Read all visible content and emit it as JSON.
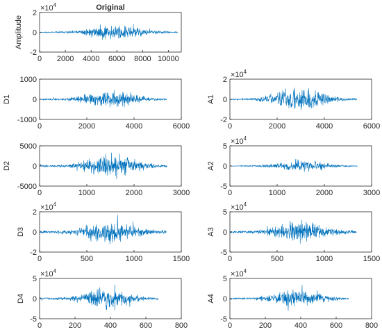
{
  "chart_data": [
    {
      "id": "original",
      "type": "line",
      "title": "Original",
      "ylabel": "Amplitude",
      "exponent_label": "×10",
      "exponent_power": "4",
      "xlim": [
        0,
        11000
      ],
      "ylim": [
        -2,
        2
      ],
      "xticks": [
        0,
        2000,
        4000,
        6000,
        8000,
        10000
      ],
      "xticklabels": [
        "0",
        "2000",
        "4000",
        "6000",
        "8000",
        "10000"
      ],
      "yticks": [
        -2,
        0,
        2
      ],
      "yticklabels": [
        "-2",
        "0",
        "2"
      ],
      "signal": {
        "length": 10750,
        "peak": 1.05,
        "center": 0.55,
        "width": 0.23,
        "floor": 0.06,
        "seed": 11
      },
      "series_color": "#0072BD"
    },
    {
      "id": "d1",
      "type": "line",
      "ylabel": "D1",
      "xlim": [
        0,
        6000
      ],
      "ylim": [
        -1000,
        1000
      ],
      "xticks": [
        0,
        2000,
        4000,
        6000
      ],
      "xticklabels": [
        "0",
        "2000",
        "4000",
        "6000"
      ],
      "yticks": [
        -1000,
        0,
        1000
      ],
      "yticklabels": [
        "-1000",
        "0",
        "1000"
      ],
      "signal": {
        "length": 5380,
        "peak": 560,
        "center": 0.56,
        "width": 0.24,
        "floor": 0.08,
        "seed": 23
      },
      "series_color": "#0072BD"
    },
    {
      "id": "a1",
      "type": "line",
      "ylabel": "A1",
      "exponent_label": "×10",
      "exponent_power": "4",
      "xlim": [
        0,
        6000
      ],
      "ylim": [
        -2,
        2
      ],
      "xticks": [
        0,
        2000,
        4000,
        6000
      ],
      "xticklabels": [
        "0",
        "2000",
        "4000",
        "6000"
      ],
      "yticks": [
        -2,
        0,
        2
      ],
      "yticklabels": [
        "-2",
        "0",
        "2"
      ],
      "signal": {
        "length": 5380,
        "peak": 1.75,
        "center": 0.55,
        "width": 0.22,
        "floor": 0.05,
        "seed": 37
      },
      "series_color": "#0072BD"
    },
    {
      "id": "d2",
      "type": "line",
      "ylabel": "D2",
      "xlim": [
        0,
        3000
      ],
      "ylim": [
        -5000,
        5000
      ],
      "xticks": [
        0,
        1000,
        2000,
        3000
      ],
      "xticklabels": [
        "0",
        "1000",
        "2000",
        "3000"
      ],
      "yticks": [
        -5000,
        0,
        5000
      ],
      "yticklabels": [
        "-5000",
        "0",
        "5000"
      ],
      "signal": {
        "length": 2700,
        "peak": 4000,
        "center": 0.57,
        "width": 0.22,
        "floor": 0.08,
        "seed": 41
      },
      "series_color": "#0072BD"
    },
    {
      "id": "a2",
      "type": "line",
      "ylabel": "A2",
      "exponent_label": "×10",
      "exponent_power": "4",
      "xlim": [
        0,
        3000
      ],
      "ylim": [
        -5,
        5
      ],
      "xticks": [
        0,
        1000,
        2000,
        3000
      ],
      "xticklabels": [
        "0",
        "1000",
        "2000",
        "3000"
      ],
      "yticks": [
        -5,
        0,
        5
      ],
      "yticklabels": [
        "-5",
        "0",
        "5"
      ],
      "signal": {
        "length": 2700,
        "peak": 2.0,
        "center": 0.56,
        "width": 0.23,
        "floor": 0.06,
        "seed": 53
      },
      "series_color": "#0072BD"
    },
    {
      "id": "d3",
      "type": "line",
      "ylabel": "D3",
      "exponent_label": "×10",
      "exponent_power": "4",
      "xlim": [
        0,
        1500
      ],
      "ylim": [
        -2,
        2
      ],
      "xticks": [
        0,
        500,
        1000,
        1500
      ],
      "xticklabels": [
        "0",
        "500",
        "1000",
        "1500"
      ],
      "yticks": [
        -2,
        0,
        2
      ],
      "yticklabels": [
        "-2",
        "0",
        "2"
      ],
      "signal": {
        "length": 1340,
        "peak": 1.6,
        "center": 0.57,
        "width": 0.22,
        "floor": 0.12,
        "seed": 67
      },
      "series_color": "#0072BD"
    },
    {
      "id": "a3",
      "type": "line",
      "ylabel": "A3",
      "exponent_label": "×10",
      "exponent_power": "4",
      "xlim": [
        0,
        1500
      ],
      "ylim": [
        -5,
        5
      ],
      "xticks": [
        0,
        500,
        1000,
        1500
      ],
      "xticklabels": [
        "0",
        "500",
        "1000",
        "1500"
      ],
      "yticks": [
        -5,
        0,
        5
      ],
      "yticklabels": [
        "-5",
        "0",
        "5"
      ],
      "signal": {
        "length": 1340,
        "peak": 3.6,
        "center": 0.56,
        "width": 0.23,
        "floor": 0.1,
        "seed": 79
      },
      "series_color": "#0072BD"
    },
    {
      "id": "d4",
      "type": "line",
      "ylabel": "D4",
      "exponent_label": "×10",
      "exponent_power": "4",
      "xlim": [
        0,
        800
      ],
      "ylim": [
        -5,
        5
      ],
      "xticks": [
        0,
        200,
        400,
        600,
        800
      ],
      "xticklabels": [
        "0",
        "200",
        "400",
        "600",
        "800"
      ],
      "yticks": [
        -5,
        0,
        5
      ],
      "yticklabels": [
        "-5",
        "0",
        "5"
      ],
      "signal": {
        "length": 670,
        "peak": 3.8,
        "center": 0.57,
        "width": 0.2,
        "floor": 0.1,
        "seed": 83
      },
      "series_color": "#0072BD"
    },
    {
      "id": "a4",
      "type": "line",
      "ylabel": "A4",
      "exponent_label": "×10",
      "exponent_power": "4",
      "xlim": [
        0,
        800
      ],
      "ylim": [
        -5,
        5
      ],
      "xticks": [
        0,
        200,
        400,
        600,
        800
      ],
      "xticklabels": [
        "0",
        "200",
        "400",
        "600",
        "800"
      ],
      "yticks": [
        -5,
        0,
        5
      ],
      "yticklabels": [
        "-5",
        "0",
        "5"
      ],
      "signal": {
        "length": 670,
        "peak": 3.0,
        "center": 0.57,
        "width": 0.24,
        "floor": 0.08,
        "seed": 97
      },
      "series_color": "#0072BD"
    }
  ]
}
